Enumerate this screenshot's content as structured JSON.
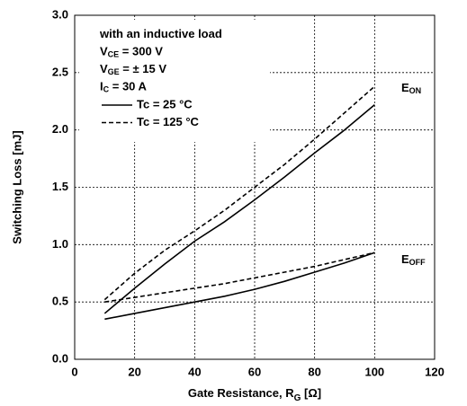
{
  "chart_data": {
    "type": "line",
    "x_label": {
      "text": "Gate Resistance, R",
      "sub": "G",
      "rest": " [Ω]"
    },
    "y_label": "Switching Loss [mJ]",
    "xlim": [
      0,
      120
    ],
    "xticks": [
      0,
      20,
      40,
      60,
      80,
      100,
      120
    ],
    "ylim": [
      0,
      3
    ],
    "yticks": [
      {
        "value": 0,
        "label": "0.0"
      },
      {
        "value": 0.5,
        "label": "0.5"
      },
      {
        "value": 1,
        "label": "1.0"
      },
      {
        "value": 1.5,
        "label": "1.5"
      },
      {
        "value": 2,
        "label": "2.0"
      },
      {
        "value": 2.5,
        "label": "2.5"
      },
      {
        "value": 3,
        "label": "3.0"
      }
    ],
    "grid": true,
    "conditions": [
      {
        "main": "with an inductive load"
      },
      {
        "main": "V",
        "sub": "CE",
        "rest": " = 300 V"
      },
      {
        "main": "V",
        "sub": "GE",
        "rest": " = ± 15 V"
      },
      {
        "main": "I",
        "sub": "C",
        "rest": " = 30 A"
      }
    ],
    "x": [
      10,
      20,
      30,
      40,
      50,
      60,
      70,
      80,
      90,
      100
    ],
    "series": [
      {
        "name": "Tc = 25 °C",
        "color": "#000000",
        "dash": false,
        "values": [
          0.4,
          0.62,
          0.83,
          1.03,
          1.2,
          1.39,
          1.59,
          1.8,
          2.0,
          2.22
        ]
      },
      {
        "name": "Tc = 125 °C",
        "color": "#000000",
        "dash": true,
        "values": [
          0.52,
          0.75,
          0.95,
          1.12,
          1.3,
          1.5,
          1.7,
          1.92,
          2.15,
          2.38
        ]
      },
      {
        "name": "Tc = 25 °C",
        "color": "#000000",
        "dash": false,
        "values": [
          0.35,
          0.4,
          0.45,
          0.5,
          0.55,
          0.61,
          0.68,
          0.76,
          0.84,
          0.93
        ]
      },
      {
        "name": "Tc = 125 °C",
        "color": "#000000",
        "dash": true,
        "values": [
          0.5,
          0.54,
          0.58,
          0.62,
          0.66,
          0.71,
          0.76,
          0.81,
          0.87,
          0.93
        ]
      }
    ],
    "curve_labels": [
      {
        "main": "E",
        "sub": "ON"
      },
      {
        "main": "E",
        "sub": "OFF"
      }
    ]
  }
}
